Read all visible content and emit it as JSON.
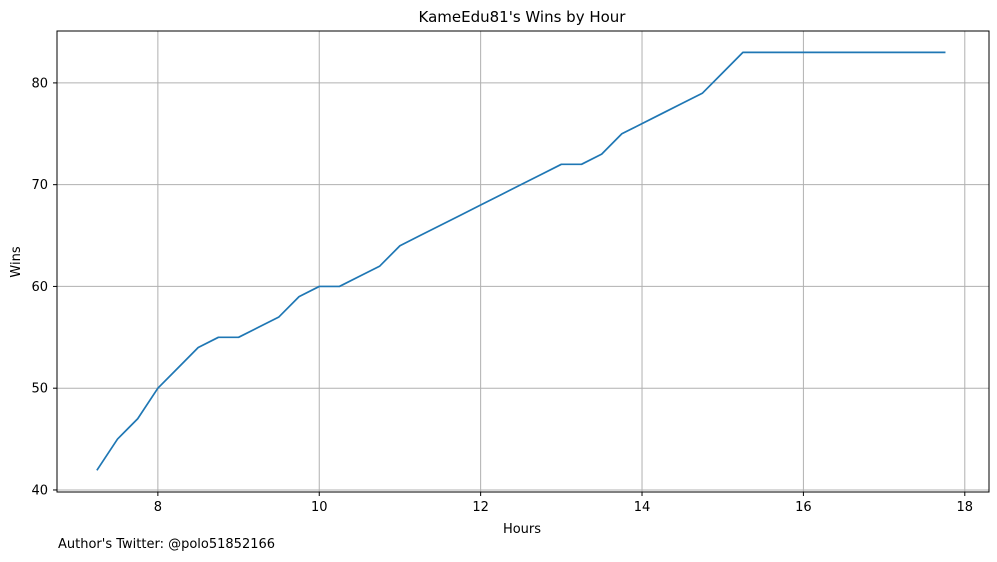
{
  "chart_data": {
    "type": "line",
    "title": "KameEdu81's Wins by Hour",
    "xlabel": "Hours",
    "ylabel": "Wins",
    "xlim": [
      6.75,
      18.3
    ],
    "ylim": [
      39.8,
      85.1
    ],
    "xticks": [
      8,
      10,
      12,
      14,
      16,
      18
    ],
    "yticks": [
      40,
      50,
      60,
      70,
      80
    ],
    "grid": true,
    "series": [
      {
        "color": "#1f77b4",
        "x": [
          7.25,
          7.5,
          7.75,
          8.0,
          8.25,
          8.5,
          8.75,
          9.0,
          9.25,
          9.5,
          9.75,
          10.0,
          10.25,
          10.5,
          10.75,
          11.0,
          11.25,
          11.5,
          11.75,
          12.0,
          12.25,
          12.5,
          12.75,
          13.0,
          13.25,
          13.5,
          13.75,
          14.0,
          14.25,
          14.5,
          14.75,
          15.0,
          15.25,
          15.5,
          15.75,
          16.0,
          16.25,
          16.5,
          16.75,
          17.0,
          17.25,
          17.5,
          17.75
        ],
        "y": [
          42,
          45,
          47,
          50,
          52,
          54,
          55,
          55,
          56,
          57,
          59,
          60,
          60,
          61,
          62,
          64,
          65,
          66,
          67,
          68,
          69,
          70,
          71,
          72,
          72,
          73,
          75,
          76,
          77,
          78,
          79,
          81,
          83,
          83,
          83,
          83,
          83,
          83,
          83,
          83,
          83,
          83,
          83
        ]
      }
    ]
  },
  "footer": {
    "text": "Author's Twitter: @polo51852166"
  }
}
